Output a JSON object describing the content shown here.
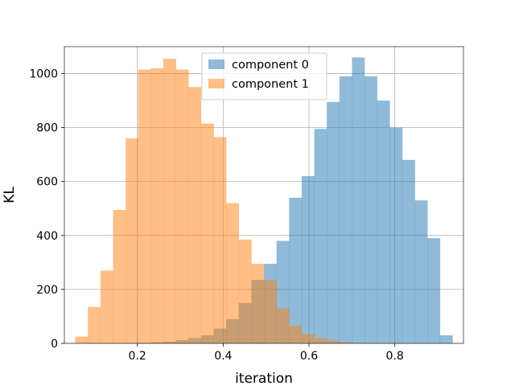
{
  "chart_data": {
    "type": "bar",
    "subtype": "histogram",
    "xlabel": "iteration",
    "ylabel": "KL",
    "xlim": [
      0.03,
      0.96
    ],
    "ylim": [
      0,
      1100
    ],
    "xticks": [
      0.2,
      0.4,
      0.6,
      0.8
    ],
    "xtick_labels": [
      "0.2",
      "0.4",
      "0.6",
      "0.8"
    ],
    "yticks": [
      0,
      200,
      400,
      600,
      800,
      1000
    ],
    "ytick_labels": [
      "0",
      "200",
      "400",
      "600",
      "800",
      "1000"
    ],
    "grid": true,
    "legend_position": "upper-center",
    "bin_width": 0.0293,
    "series": [
      {
        "name": "component 0",
        "color": "#1f77b4",
        "opacity": 0.5,
        "bin_starts": [
          0.0555,
          0.0848,
          0.1141,
          0.1434,
          0.1727,
          0.202,
          0.2313,
          0.2606,
          0.2899,
          0.3192,
          0.3485,
          0.3778,
          0.4071,
          0.4364,
          0.4657,
          0.495,
          0.5243,
          0.5536,
          0.5829,
          0.6122,
          0.6415,
          0.6708,
          0.7001,
          0.7294,
          0.7587,
          0.788,
          0.8173,
          0.8466,
          0.8759,
          0.9052
        ],
        "values": [
          0,
          0,
          0,
          0,
          0,
          2,
          4,
          6,
          12,
          20,
          30,
          55,
          90,
          150,
          235,
          295,
          380,
          540,
          620,
          795,
          895,
          990,
          1060,
          990,
          900,
          800,
          680,
          530,
          390,
          30
        ]
      },
      {
        "name": "component 1",
        "color": "#ff7f0e",
        "opacity": 0.5,
        "bin_starts": [
          0.0555,
          0.0848,
          0.1141,
          0.1434,
          0.1727,
          0.202,
          0.2313,
          0.2606,
          0.2899,
          0.3192,
          0.3485,
          0.3778,
          0.4071,
          0.4364,
          0.4657,
          0.495,
          0.5243,
          0.5536,
          0.5829,
          0.6122,
          0.6415,
          0.6708,
          0.7001,
          0.7294,
          0.7587,
          0.788,
          0.8173,
          0.8466,
          0.8759,
          0.9052
        ],
        "values": [
          25,
          135,
          270,
          495,
          760,
          1015,
          1020,
          1055,
          1015,
          950,
          815,
          765,
          520,
          385,
          295,
          235,
          130,
          65,
          35,
          20,
          10,
          4,
          2,
          1,
          0,
          0,
          0,
          0,
          0,
          0
        ]
      }
    ]
  }
}
